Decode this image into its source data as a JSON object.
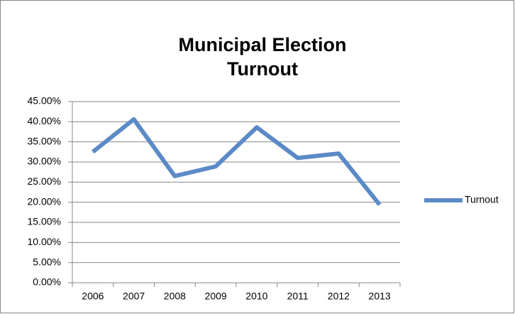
{
  "chart_data": {
    "type": "line",
    "title": "Municipal Election Turnout",
    "categories": [
      "2006",
      "2007",
      "2008",
      "2009",
      "2010",
      "2011",
      "2012",
      "2013"
    ],
    "series": [
      {
        "name": "Turnout",
        "color": "#5b8ac6",
        "values": [
          32.5,
          40.6,
          26.5,
          28.9,
          38.6,
          31.0,
          32.1,
          19.4
        ]
      }
    ],
    "ylim": [
      0,
      45
    ],
    "yticks": [
      {
        "value": 0,
        "label": "0.00%"
      },
      {
        "value": 5,
        "label": "5.00%"
      },
      {
        "value": 10,
        "label": "10.00%"
      },
      {
        "value": 15,
        "label": "15.00%"
      },
      {
        "value": 20,
        "label": "20.00%"
      },
      {
        "value": 25,
        "label": "25.00%"
      },
      {
        "value": 30,
        "label": "30.00%"
      },
      {
        "value": 35,
        "label": "35.00%"
      },
      {
        "value": 40,
        "label": "40.00%"
      },
      {
        "value": 45,
        "label": "45.00%"
      }
    ],
    "grid": true,
    "legend": "right"
  }
}
